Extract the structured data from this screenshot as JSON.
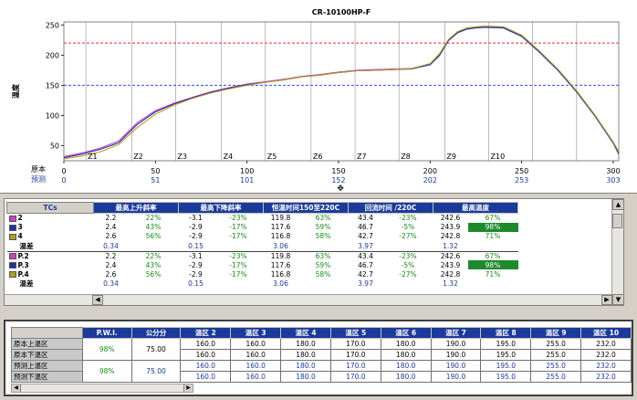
{
  "chart_data": {
    "type": "line",
    "title": "CR-10100HP-F",
    "ylabel": "温度",
    "xlim": [
      0,
      303
    ],
    "ylim": [
      25,
      255
    ],
    "yticks": [
      50,
      100,
      150,
      200,
      250
    ],
    "xticks": [
      0,
      50,
      100,
      150,
      200,
      250,
      300
    ],
    "grid": true,
    "reference_lines": [
      {
        "y": 220,
        "color": "#e03030",
        "style": "dashed"
      },
      {
        "y": 150,
        "color": "#3050e0",
        "style": "dashed"
      }
    ],
    "zone_boundaries": [
      12,
      37,
      61,
      86,
      110,
      135,
      159,
      183,
      208,
      232,
      256,
      280,
      303
    ],
    "zone_labels": [
      {
        "label": "Z1",
        "x": 12
      },
      {
        "label": "Z2",
        "x": 37
      },
      {
        "label": "Z3",
        "x": 61
      },
      {
        "label": "Z4",
        "x": 86
      },
      {
        "label": "Z5",
        "x": 110
      },
      {
        "label": "Z6",
        "x": 135
      },
      {
        "label": "Z7",
        "x": 159
      },
      {
        "label": "Z8",
        "x": 183
      },
      {
        "label": "Z9",
        "x": 208
      },
      {
        "label": "Z10",
        "x": 232
      }
    ],
    "axis_row_labels": {
      "original": "原本",
      "predicted": "预测"
    },
    "predicted_ticks": [
      "0",
      "51",
      "101",
      "152",
      "202",
      "253",
      "303"
    ],
    "series": [
      {
        "color": "#d040c0",
        "x": [
          0,
          10,
          20,
          30,
          40,
          50,
          60,
          70,
          80,
          90,
          100,
          110,
          120,
          130,
          140,
          150,
          160,
          170,
          180,
          190,
          200,
          205,
          210,
          215,
          220,
          225,
          230,
          240,
          250,
          260,
          270,
          280,
          290,
          300,
          303
        ],
        "y": [
          32,
          38,
          46,
          58,
          88,
          108,
          120,
          130,
          139,
          146,
          152,
          156,
          160,
          165,
          168,
          172,
          175,
          176,
          177,
          178,
          185,
          200,
          225,
          238,
          244,
          246,
          247,
          246,
          232,
          205,
          175,
          140,
          100,
          55,
          38
        ]
      },
      {
        "color": "#2030a0",
        "x": [
          0,
          10,
          20,
          30,
          40,
          50,
          60,
          70,
          80,
          90,
          100,
          110,
          120,
          130,
          140,
          150,
          160,
          170,
          180,
          190,
          200,
          205,
          210,
          215,
          220,
          225,
          230,
          240,
          250,
          260,
          270,
          280,
          290,
          300,
          303
        ],
        "y": [
          30,
          36,
          44,
          55,
          85,
          106,
          119,
          129,
          138,
          145,
          151,
          155,
          159,
          164,
          167,
          171,
          174,
          175,
          176,
          177,
          184,
          199,
          224,
          237,
          243,
          245,
          246,
          245,
          231,
          204,
          174,
          139,
          99,
          54,
          36
        ]
      },
      {
        "color": "#b0a020",
        "x": [
          0,
          10,
          20,
          30,
          40,
          50,
          60,
          70,
          80,
          90,
          100,
          110,
          120,
          130,
          140,
          150,
          160,
          170,
          180,
          190,
          200,
          205,
          210,
          215,
          220,
          225,
          230,
          240,
          250,
          260,
          270,
          280,
          290,
          300,
          303
        ],
        "y": [
          28,
          33,
          40,
          52,
          80,
          102,
          117,
          128,
          137,
          144,
          150,
          155,
          159,
          164,
          167,
          171,
          174,
          175,
          176,
          178,
          186,
          202,
          226,
          239,
          245,
          247,
          248,
          247,
          233,
          206,
          176,
          141,
          101,
          56,
          40
        ]
      }
    ]
  },
  "tc_table": {
    "tcs_header": "TCs",
    "headers": [
      "最高上升斜率",
      "最高下降斜率",
      "恒温时间150至220C",
      "回流时间 /220C",
      "最高温度"
    ],
    "rows": [
      {
        "swatch": "#d040c0",
        "label": "2",
        "v": [
          "2.2",
          "22%",
          "-3.1",
          "-23%",
          "119.8",
          "63%",
          "43.4",
          "-23%",
          "242.6",
          "67%"
        ]
      },
      {
        "swatch": "#2030a0",
        "label": "3",
        "v": [
          "2.4",
          "43%",
          "-2.9",
          "-17%",
          "117.6",
          "59%",
          "46.7",
          "-5%",
          "243.9",
          "98%"
        ]
      },
      {
        "swatch": "#b0a020",
        "label": "4",
        "v": [
          "2.6",
          "56%",
          "-2.9",
          "-17%",
          "116.8",
          "58%",
          "42.7",
          "-27%",
          "242.8",
          "71%"
        ]
      },
      {
        "swatch": "",
        "label": "温差",
        "v": [
          "0.34",
          "",
          "0.15",
          "",
          "3.06",
          "",
          "3.97",
          "",
          "1.32",
          ""
        ]
      },
      {
        "swatch": "#d040c0",
        "label": "P.2",
        "v": [
          "2.2",
          "22%",
          "-3.1",
          "-23%",
          "119.8",
          "63%",
          "43.4",
          "-23%",
          "242.6",
          "67%"
        ]
      },
      {
        "swatch": "#2030a0",
        "label": "P.3",
        "v": [
          "2.4",
          "43%",
          "-2.9",
          "-17%",
          "117.6",
          "59%",
          "46.7",
          "-5%",
          "243.9",
          "98%"
        ]
      },
      {
        "swatch": "#b0a020",
        "label": "P.4",
        "v": [
          "2.6",
          "56%",
          "-2.9",
          "-17%",
          "116.8",
          "58%",
          "42.7",
          "-27%",
          "242.8",
          "71%"
        ]
      },
      {
        "swatch": "",
        "label": "温差",
        "v": [
          "0.34",
          "",
          "0.15",
          "",
          "3.06",
          "",
          "3.97",
          "",
          "1.32",
          ""
        ]
      }
    ]
  },
  "zone_table": {
    "headers": [
      "P.W.I.",
      "公分分",
      "温区 2",
      "温区 3",
      "温区 4",
      "温区 5",
      "温区 6",
      "温区 7",
      "温区 8",
      "温区 9",
      "温区 10"
    ],
    "rows": [
      {
        "label": "原本上温区",
        "pwi": "98%",
        "score": "75.00",
        "v": [
          "160.0",
          "160.0",
          "180.0",
          "170.0",
          "180.0",
          "190.0",
          "195.0",
          "255.0",
          "232.0"
        ]
      },
      {
        "label": "原本下温区",
        "pwi": "",
        "score": "",
        "v": [
          "160.0",
          "160.0",
          "180.0",
          "170.0",
          "180.0",
          "190.0",
          "195.0",
          "255.0",
          "232.0"
        ]
      },
      {
        "label": "预测上温区",
        "pwi": "98%",
        "score": "75.00",
        "v": [
          "160.0",
          "160.0",
          "180.0",
          "170.0",
          "180.0",
          "190.0",
          "195.0",
          "255.0",
          "232.0"
        ]
      },
      {
        "label": "预测下温区",
        "pwi": "",
        "score": "",
        "v": [
          "160.0",
          "160.0",
          "180.0",
          "170.0",
          "180.0",
          "190.0",
          "195.0",
          "255.0",
          "232.0"
        ]
      }
    ]
  }
}
